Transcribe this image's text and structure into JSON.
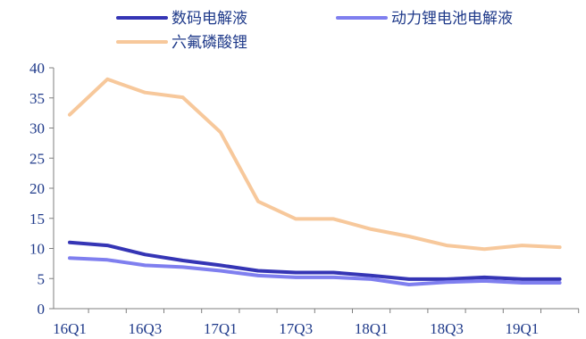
{
  "chart_data": {
    "type": "line",
    "title": "",
    "xlabel": "",
    "ylabel": "",
    "ylim": [
      0,
      40
    ],
    "yticks": [
      "0",
      "5",
      "10",
      "15",
      "20",
      "25",
      "30",
      "35",
      "40"
    ],
    "x": [
      "16Q1",
      "16Q2",
      "16Q3",
      "16Q4",
      "17Q1",
      "17Q2",
      "17Q3",
      "17Q4",
      "18Q1",
      "18Q2",
      "18Q3",
      "18Q4",
      "19Q1",
      "19Q2"
    ],
    "x_tick_labels": [
      "16Q1",
      "16Q3",
      "17Q1",
      "17Q3",
      "18Q1",
      "18Q3",
      "19Q1"
    ],
    "grid": false,
    "legend_position": "top",
    "series": [
      {
        "name": "数码电解液",
        "color": "#3535b5",
        "values": [
          11.0,
          10.5,
          9.0,
          8.0,
          7.2,
          6.3,
          6.0,
          6.0,
          5.5,
          4.9,
          4.9,
          5.2,
          4.9,
          4.9
        ]
      },
      {
        "name": "动力锂电池电解液",
        "color": "#7f7fef",
        "values": [
          8.4,
          8.1,
          7.2,
          6.9,
          6.3,
          5.5,
          5.2,
          5.2,
          4.9,
          4.0,
          4.4,
          4.6,
          4.3,
          4.3
        ]
      },
      {
        "name": "六氟磷酸锂",
        "color": "#f7c89b",
        "values": [
          32.2,
          38.1,
          35.9,
          35.1,
          29.3,
          17.8,
          14.9,
          14.9,
          13.2,
          12.0,
          10.5,
          9.9,
          10.5,
          10.2
        ]
      }
    ]
  }
}
